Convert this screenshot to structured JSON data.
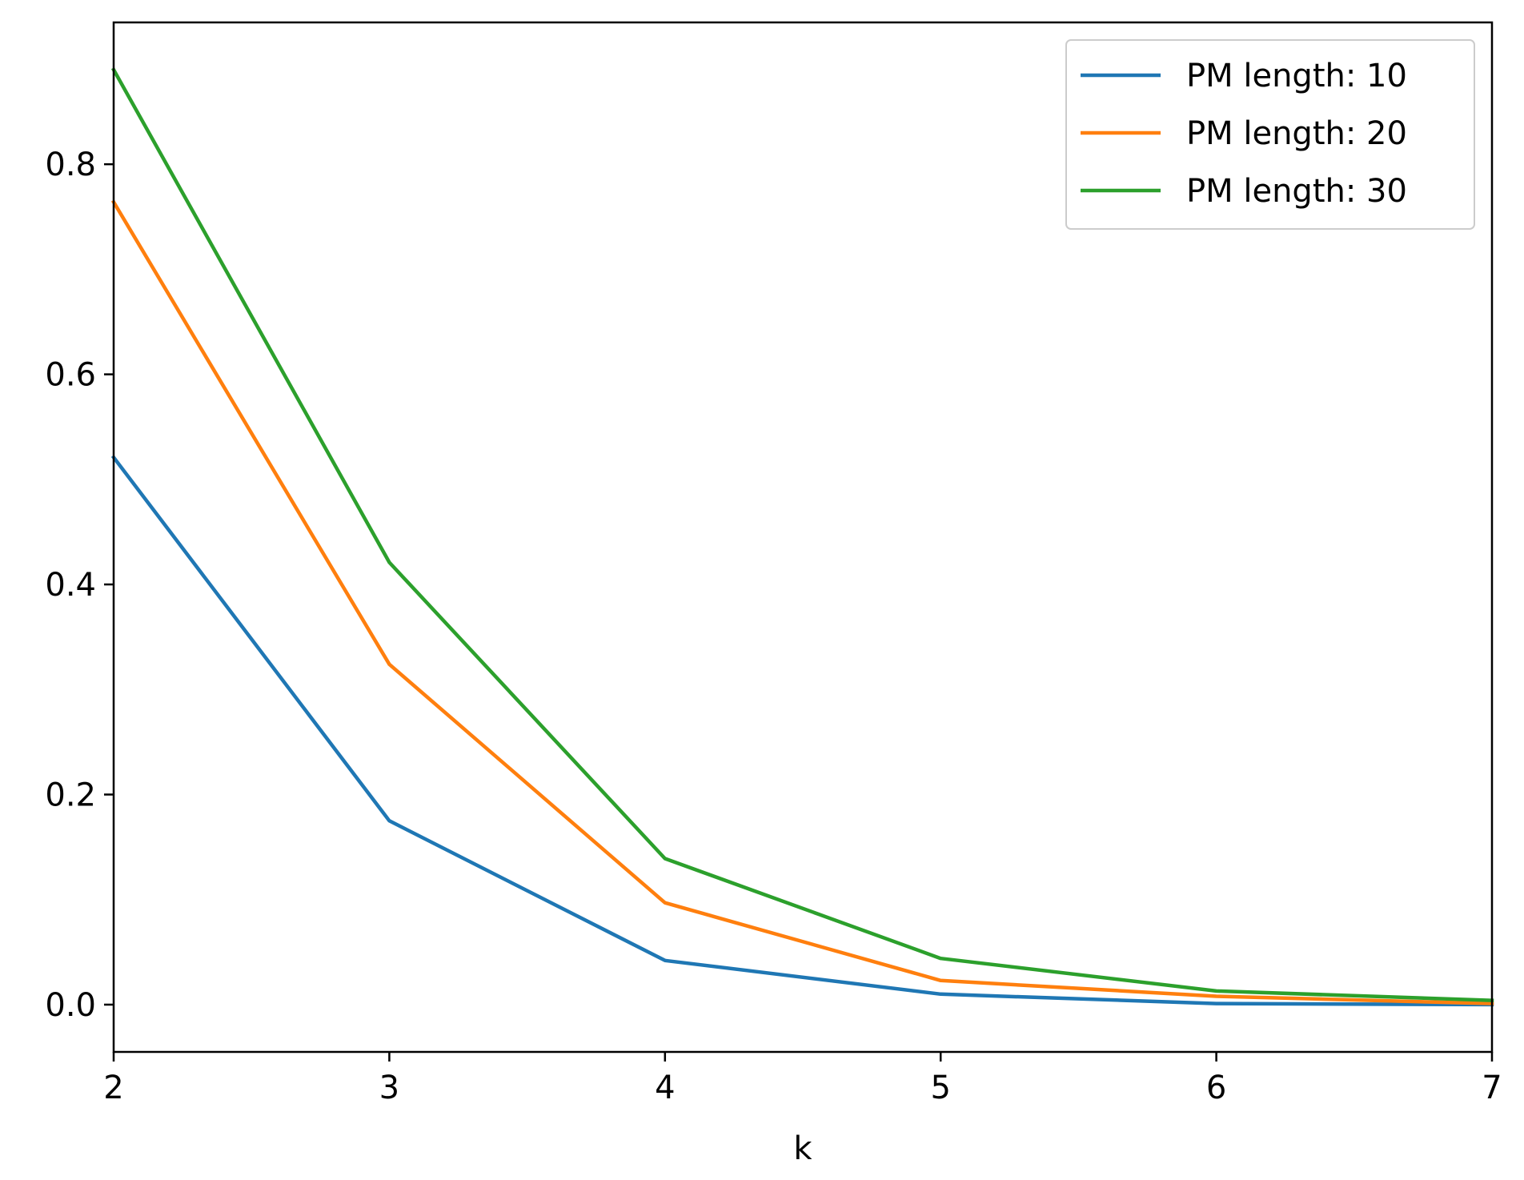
{
  "chart_data": {
    "type": "line",
    "xlabel": "k",
    "ylabel": "",
    "x": [
      2,
      3,
      4,
      5,
      6,
      7
    ],
    "xlim": [
      2,
      7
    ],
    "ylim": [
      -0.045,
      0.935
    ],
    "xticks": [
      "2",
      "3",
      "4",
      "5",
      "6",
      "7"
    ],
    "yticks": [
      "0.0",
      "0.2",
      "0.4",
      "0.6",
      "0.8"
    ],
    "grid": false,
    "legend_position": "top-right",
    "series": [
      {
        "name": "PM length: 10",
        "color": "#1f77b4",
        "values": [
          0.521,
          0.175,
          0.042,
          0.01,
          0.001,
          0.0
        ]
      },
      {
        "name": "PM length: 20",
        "color": "#ff7f0e",
        "values": [
          0.764,
          0.324,
          0.097,
          0.023,
          0.008,
          0.001
        ]
      },
      {
        "name": "PM length: 30",
        "color": "#2ca02c",
        "values": [
          0.89,
          0.421,
          0.139,
          0.044,
          0.013,
          0.004
        ]
      }
    ]
  }
}
